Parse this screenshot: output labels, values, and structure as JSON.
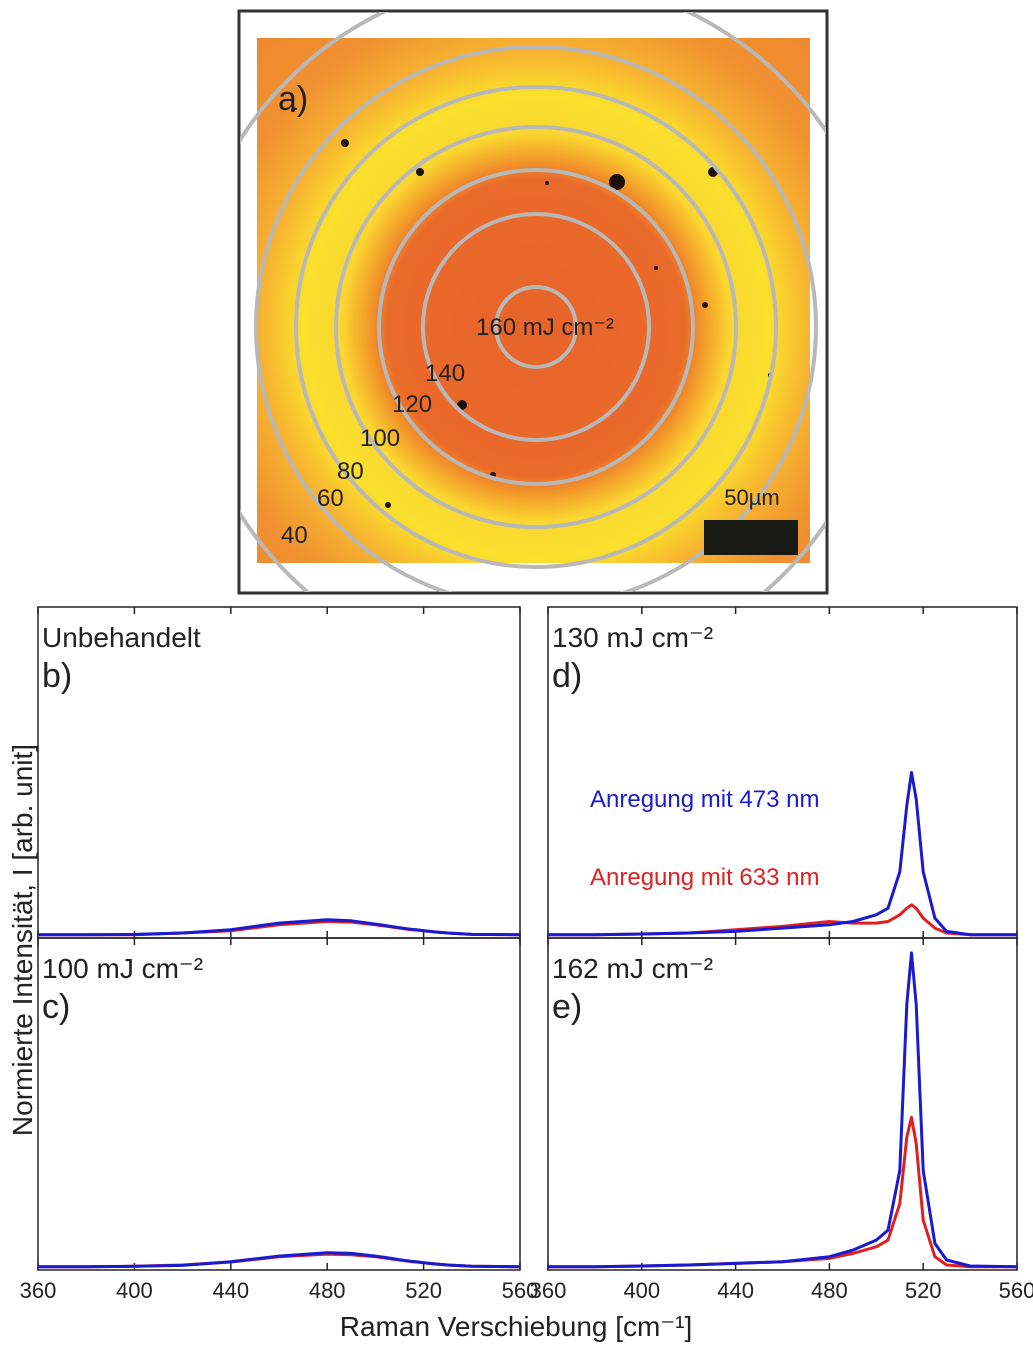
{
  "image": {
    "panel": "a)",
    "scale_bar": "50µm",
    "ring_labels": [
      "160 mJ cm⁻²",
      "140",
      "120",
      "100",
      "80",
      "60",
      "40"
    ]
  },
  "figure": {
    "xlabel": "Raman Verschiebung [cm⁻¹]",
    "ylabel": "Normierte Intensität, I [arb. unit]"
  },
  "chart_data": [
    {
      "type": "line",
      "panel": "b)",
      "title": "Unbehandelt",
      "x": [
        360,
        380,
        400,
        420,
        440,
        460,
        480,
        490,
        500,
        505,
        510,
        513,
        515,
        517,
        520,
        525,
        530,
        540,
        560
      ],
      "series": [
        {
          "color": "#e02020",
          "values": [
            0.01,
            0.01,
            0.01,
            0.015,
            0.022,
            0.04,
            0.05,
            0.048,
            0.04,
            0.035,
            0.03,
            0.027,
            0.025,
            0.024,
            0.022,
            0.018,
            0.015,
            0.011,
            0.01
          ]
        },
        {
          "color": "#1a1ad0",
          "values": [
            0.01,
            0.01,
            0.011,
            0.015,
            0.025,
            0.045,
            0.055,
            0.052,
            0.042,
            0.037,
            0.031,
            0.028,
            0.026,
            0.025,
            0.022,
            0.018,
            0.015,
            0.011,
            0.01
          ]
        }
      ],
      "xlim": [
        360,
        560
      ],
      "ylim": [
        0,
        1
      ],
      "xticks": [
        360,
        400,
        440,
        480,
        520,
        560
      ]
    },
    {
      "type": "line",
      "panel": "d)",
      "title": "130 mJ cm⁻²",
      "x": [
        360,
        380,
        400,
        420,
        440,
        460,
        480,
        490,
        500,
        505,
        510,
        513,
        515,
        517,
        520,
        525,
        530,
        540,
        560
      ],
      "series": [
        {
          "name": "Anregung mit 633 nm",
          "color": "#e02020",
          "values": [
            0.01,
            0.01,
            0.012,
            0.015,
            0.025,
            0.035,
            0.05,
            0.045,
            0.045,
            0.05,
            0.07,
            0.09,
            0.1,
            0.09,
            0.06,
            0.03,
            0.015,
            0.01,
            0.01
          ]
        },
        {
          "name": "Anregung mit 473 nm",
          "color": "#1a1ad0",
          "values": [
            0.01,
            0.01,
            0.012,
            0.015,
            0.02,
            0.03,
            0.04,
            0.05,
            0.07,
            0.09,
            0.2,
            0.4,
            0.5,
            0.42,
            0.2,
            0.06,
            0.02,
            0.01,
            0.01
          ]
        }
      ],
      "xlim": [
        360,
        560
      ],
      "ylim": [
        0,
        1
      ],
      "xticks": [
        360,
        400,
        440,
        480,
        520,
        560
      ]
    },
    {
      "type": "line",
      "panel": "c)",
      "title": "100 mJ cm⁻²",
      "x": [
        360,
        380,
        400,
        420,
        440,
        460,
        480,
        490,
        500,
        505,
        510,
        513,
        515,
        517,
        520,
        525,
        530,
        540,
        560
      ],
      "series": [
        {
          "color": "#e02020",
          "values": [
            0.01,
            0.01,
            0.011,
            0.015,
            0.024,
            0.04,
            0.048,
            0.046,
            0.04,
            0.035,
            0.03,
            0.027,
            0.025,
            0.024,
            0.022,
            0.018,
            0.015,
            0.011,
            0.01
          ]
        },
        {
          "color": "#1a1ad0",
          "values": [
            0.01,
            0.01,
            0.011,
            0.014,
            0.025,
            0.042,
            0.052,
            0.05,
            0.042,
            0.037,
            0.031,
            0.028,
            0.026,
            0.025,
            0.022,
            0.018,
            0.015,
            0.011,
            0.01
          ]
        }
      ],
      "xlim": [
        360,
        560
      ],
      "ylim": [
        0,
        1
      ],
      "xticks": [
        360,
        400,
        440,
        480,
        520,
        560
      ]
    },
    {
      "type": "line",
      "panel": "e)",
      "title": "162 mJ cm⁻²",
      "x": [
        360,
        380,
        400,
        420,
        440,
        460,
        480,
        490,
        500,
        505,
        510,
        513,
        515,
        517,
        520,
        525,
        530,
        540,
        560
      ],
      "series": [
        {
          "color": "#e02020",
          "values": [
            0.01,
            0.01,
            0.012,
            0.015,
            0.02,
            0.025,
            0.035,
            0.05,
            0.07,
            0.09,
            0.2,
            0.4,
            0.46,
            0.38,
            0.15,
            0.04,
            0.015,
            0.01,
            0.01
          ]
        },
        {
          "color": "#1a1ad0",
          "values": [
            0.01,
            0.01,
            0.012,
            0.015,
            0.02,
            0.025,
            0.04,
            0.06,
            0.09,
            0.12,
            0.3,
            0.8,
            0.955,
            0.8,
            0.3,
            0.08,
            0.03,
            0.012,
            0.01
          ]
        }
      ],
      "xlim": [
        360,
        560
      ],
      "ylim": [
        0,
        1
      ],
      "xticks": [
        360,
        400,
        440,
        480,
        520,
        560
      ]
    }
  ]
}
